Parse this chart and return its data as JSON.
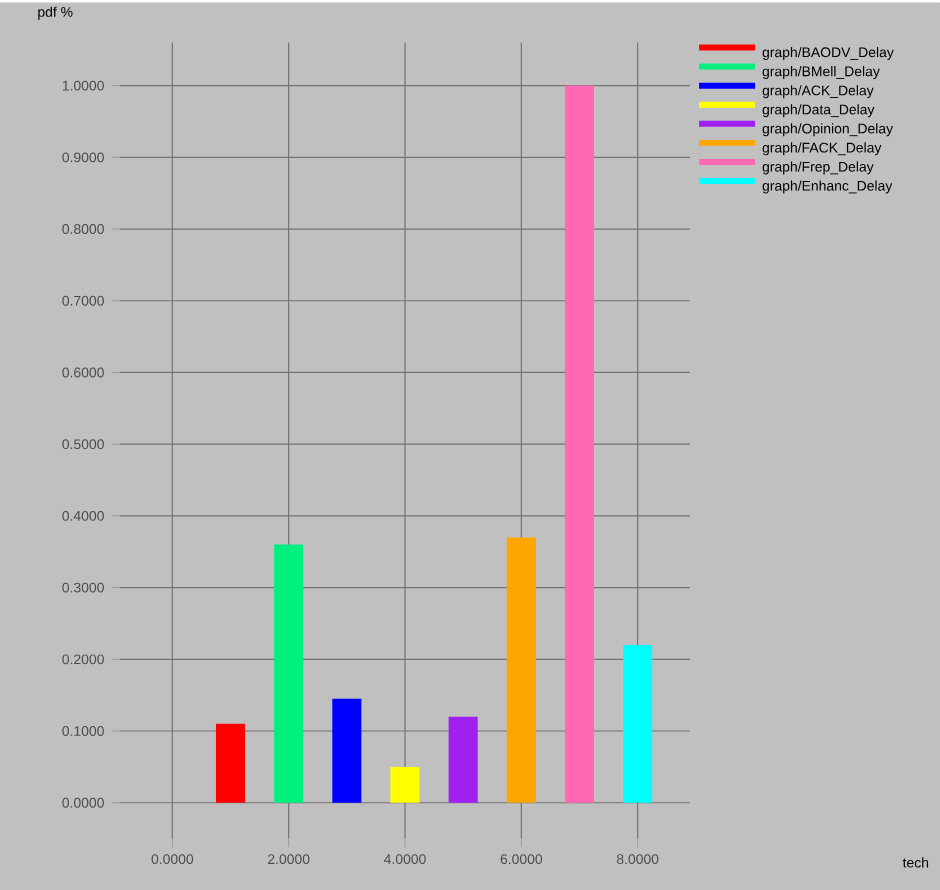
{
  "chart_data": {
    "type": "bar",
    "ylabel": "pdf %",
    "annotations": [
      "tech"
    ],
    "series": [
      {
        "name": "graph/BAODV_Delay",
        "color": "#ff0000",
        "x": [
          1
        ],
        "values": [
          0.11
        ]
      },
      {
        "name": "graph/BMell_Delay",
        "color": "#00f080",
        "x": [
          2
        ],
        "values": [
          0.36
        ]
      },
      {
        "name": "graph/ACK_Delay",
        "color": "#0000ff",
        "x": [
          3
        ],
        "values": [
          0.145
        ]
      },
      {
        "name": "graph/Data_Delay",
        "color": "#ffff00",
        "x": [
          4
        ],
        "values": [
          0.05
        ]
      },
      {
        "name": "graph/Opinion_Delay",
        "color": "#a020f0",
        "x": [
          5
        ],
        "values": [
          0.12
        ]
      },
      {
        "name": "graph/FACK_Delay",
        "color": "#ffa500",
        "x": [
          6
        ],
        "values": [
          0.37
        ]
      },
      {
        "name": "graph/Frep_Delay",
        "color": "#ff69b4",
        "x": [
          7
        ],
        "values": [
          1.0
        ]
      },
      {
        "name": "graph/Enhanc_Delay",
        "color": "#00ffff",
        "x": [
          8
        ],
        "values": [
          0.22
        ]
      }
    ],
    "xlim": [
      -0.9,
      8.9
    ],
    "ylim": [
      -0.05,
      1.06
    ],
    "xticks": [
      {
        "value": 0,
        "label": "0.0000"
      },
      {
        "value": 2,
        "label": "2.0000"
      },
      {
        "value": 4,
        "label": "4.0000"
      },
      {
        "value": 6,
        "label": "6.0000"
      },
      {
        "value": 8,
        "label": "8.0000"
      }
    ],
    "yticks": [
      {
        "value": 0,
        "label": "0.0000"
      },
      {
        "value": 0.1,
        "label": "0.1000"
      },
      {
        "value": 0.2,
        "label": "0.2000"
      },
      {
        "value": 0.3,
        "label": "0.3000"
      },
      {
        "value": 0.4,
        "label": "0.4000"
      },
      {
        "value": 0.5,
        "label": "0.5000"
      },
      {
        "value": 0.6,
        "label": "0.6000"
      },
      {
        "value": 0.7,
        "label": "0.7000"
      },
      {
        "value": 0.8,
        "label": "0.8000"
      },
      {
        "value": 0.9,
        "label": "0.9000"
      },
      {
        "value": 1.0,
        "label": "1.0000"
      }
    ],
    "grid": true,
    "legend": "top right"
  }
}
